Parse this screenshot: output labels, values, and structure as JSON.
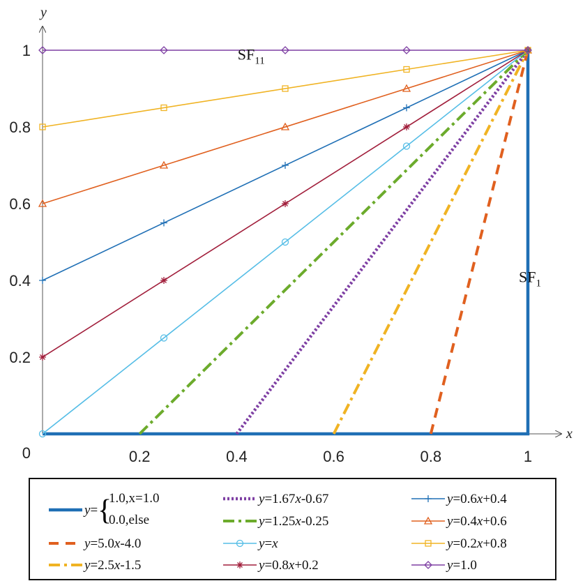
{
  "chart_data": {
    "type": "line",
    "xlabel": "x",
    "ylabel": "y",
    "xlim": [
      0,
      1
    ],
    "ylim": [
      0,
      1
    ],
    "x_ticks": [
      0.2,
      0.4,
      0.6,
      0.8,
      1
    ],
    "x_tick_labels": [
      "0.2",
      "0.4",
      "0.6",
      "0.8",
      "1"
    ],
    "y_ticks": [
      0.2,
      0.4,
      0.6,
      0.8,
      1
    ],
    "y_tick_labels": [
      "0.2",
      "0.4",
      "0.6",
      "0.8",
      "1"
    ],
    "origin_label": "0",
    "grid": false,
    "legend_position": "bottom",
    "annotations": [
      {
        "text": "SF",
        "sub": "11",
        "x": 0.43,
        "y": 0.99
      },
      {
        "text": "SF",
        "sub": "1",
        "x": 0.985,
        "y": 0.41
      }
    ],
    "series": [
      {
        "name": "y=1.0,x=1.0 / 0.0,else",
        "legend": {
          "prefix": "y=",
          "line1": "1.0,x=1.0",
          "line2": "0.0,else"
        },
        "color": "#1f6fb5",
        "dash": "solid",
        "width": 4.5,
        "marker": "none",
        "x": [
          0,
          1,
          1
        ],
        "y": [
          0,
          0,
          1
        ],
        "marker_x": []
      },
      {
        "name": "y=5.0x-4.0",
        "legend": [
          {
            "t": "y",
            "i": true
          },
          {
            "t": "=5.0"
          },
          {
            "t": "x",
            "i": true
          },
          {
            "t": "-4.0"
          }
        ],
        "color": "#e0601f",
        "dash": "14,10",
        "width": 4,
        "marker": "none",
        "x": [
          0.8,
          1
        ],
        "y": [
          0,
          1
        ],
        "marker_x": []
      },
      {
        "name": "y=2.5x-1.5",
        "legend": [
          {
            "t": "y",
            "i": true
          },
          {
            "t": "=2.5"
          },
          {
            "t": "x",
            "i": true
          },
          {
            "t": "-1.5"
          }
        ],
        "color": "#f0b323",
        "dash": "16,6,4,6",
        "width": 4,
        "marker": "none",
        "x": [
          0.6,
          1
        ],
        "y": [
          0,
          1
        ],
        "marker_x": []
      },
      {
        "name": "y=1.67x-0.67",
        "legend": [
          {
            "t": "y",
            "i": true
          },
          {
            "t": "=1.67"
          },
          {
            "t": "x",
            "i": true
          },
          {
            "t": "-0.67"
          }
        ],
        "color": "#7e3fa3",
        "dash": "3,3",
        "width": 4.5,
        "marker": "none",
        "x": [
          0.4,
          1
        ],
        "y": [
          0,
          1
        ],
        "marker_x": []
      },
      {
        "name": "y=1.25x-0.25",
        "legend": [
          {
            "t": "y",
            "i": true
          },
          {
            "t": "=1.25"
          },
          {
            "t": "x",
            "i": true
          },
          {
            "t": "-0.25"
          }
        ],
        "color": "#6cab2c",
        "dash": "16,6,4,6",
        "width": 4,
        "marker": "none",
        "x": [
          0.2,
          1
        ],
        "y": [
          0,
          1
        ],
        "marker_x": []
      },
      {
        "name": "y=x",
        "legend": [
          {
            "t": "y",
            "i": true
          },
          {
            "t": "="
          },
          {
            "t": "x",
            "i": true
          }
        ],
        "color": "#55bde6",
        "dash": "solid",
        "width": 1.6,
        "marker": "circle",
        "x": [
          0,
          1
        ],
        "y": [
          0,
          1
        ],
        "marker_x": [
          0,
          0.25,
          0.5,
          0.75,
          1
        ],
        "marker_y": [
          0,
          0.25,
          0.5,
          0.75,
          1
        ]
      },
      {
        "name": "y=0.8x+0.2",
        "legend": [
          {
            "t": "y",
            "i": true
          },
          {
            "t": "=0.8"
          },
          {
            "t": "x",
            "i": true
          },
          {
            "t": "+0.2"
          }
        ],
        "color": "#a11e3b",
        "dash": "solid",
        "width": 1.6,
        "marker": "star",
        "x": [
          0,
          1
        ],
        "y": [
          0.2,
          1
        ],
        "marker_x": [
          0,
          0.25,
          0.5,
          0.75,
          1
        ],
        "marker_y": [
          0.2,
          0.4,
          0.6,
          0.8,
          1
        ]
      },
      {
        "name": "y=0.6x+0.4",
        "legend": [
          {
            "t": "y",
            "i": true
          },
          {
            "t": "=0.6"
          },
          {
            "t": "x",
            "i": true
          },
          {
            "t": "+0.4"
          }
        ],
        "color": "#1f6fb5",
        "dash": "solid",
        "width": 1.6,
        "marker": "plus",
        "x": [
          0,
          1
        ],
        "y": [
          0.4,
          1
        ],
        "marker_x": [
          0,
          0.25,
          0.5,
          0.75,
          1
        ],
        "marker_y": [
          0.4,
          0.55,
          0.7,
          0.85,
          1
        ]
      },
      {
        "name": "y=0.4x+0.6",
        "legend": [
          {
            "t": "y",
            "i": true
          },
          {
            "t": "=0.4"
          },
          {
            "t": "x",
            "i": true
          },
          {
            "t": "+0.6"
          }
        ],
        "color": "#e0601f",
        "dash": "solid",
        "width": 1.6,
        "marker": "triangle",
        "x": [
          0,
          1
        ],
        "y": [
          0.6,
          1
        ],
        "marker_x": [
          0,
          0.25,
          0.5,
          0.75,
          1
        ],
        "marker_y": [
          0.6,
          0.7,
          0.8,
          0.9,
          1
        ]
      },
      {
        "name": "y=0.2x+0.8",
        "legend": [
          {
            "t": "y",
            "i": true
          },
          {
            "t": "=0.2"
          },
          {
            "t": "x",
            "i": true
          },
          {
            "t": "+0.8"
          }
        ],
        "color": "#f0b323",
        "dash": "solid",
        "width": 1.6,
        "marker": "square",
        "x": [
          0,
          1
        ],
        "y": [
          0.8,
          1
        ],
        "marker_x": [
          0,
          0.25,
          0.5,
          0.75,
          1
        ],
        "marker_y": [
          0.8,
          0.85,
          0.9,
          0.95,
          1
        ]
      },
      {
        "name": "y=1.0",
        "legend": [
          {
            "t": "y",
            "i": true
          },
          {
            "t": "=1.0"
          }
        ],
        "color": "#7e3fa3",
        "dash": "solid",
        "width": 1.6,
        "marker": "diamond",
        "x": [
          0,
          1
        ],
        "y": [
          1,
          1
        ],
        "marker_x": [
          0,
          0.25,
          0.5,
          0.75,
          1
        ],
        "marker_y": [
          1,
          1,
          1,
          1,
          1
        ]
      }
    ],
    "legend_layout": [
      [
        0,
        3,
        7
      ],
      [
        1,
        4,
        8
      ],
      [
        2,
        5,
        9
      ],
      [
        6,
        10
      ]
    ],
    "legend_order_columns": [
      [
        0,
        1,
        2
      ],
      [
        3,
        4,
        5,
        6
      ],
      [
        7,
        8,
        9,
        10
      ]
    ]
  }
}
